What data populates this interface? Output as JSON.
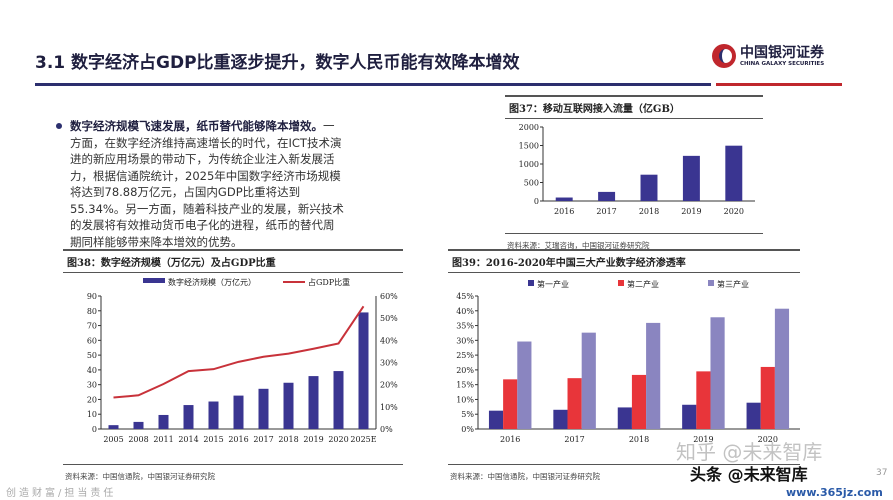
{
  "header": {
    "title": "3.1  数字经济占GDP比重逐步提升，数字人民币能有效降本增效",
    "logo_cn": "中国银河证券",
    "logo_en": "CHINA GALAXY SECURITIES"
  },
  "bullet": {
    "bold": "数字经济规模飞速发展，纸币替代能够降本增效。",
    "text": "一方面，在数字经济维持高速增长的时代，在ICT技术演进的新应用场景的带动下，为传统企业注入新发展活力，根据信通院统计，2025年中国数字经济市场规模将达到78.88万亿元，占国内GDP比重将达到55.34%。另一方面，随着科技产业的发展，新兴技术的发展将有效推动货币电子化的进程，纸币的替代周期同样能够带来降本增效的优势。"
  },
  "footer": {
    "slogan": "创造财富/担当责任",
    "page": "37",
    "watermark1": "知乎 @未来智库",
    "watermark2": "头条 @未来智库",
    "watermark3": "www.365jz.com"
  },
  "chart_data": [
    {
      "id": "fig37",
      "type": "bar",
      "title": "图37：移动互联网接入流量（亿GB）",
      "source": "资料来源：艾瑞咨询，中国银河证券研究院",
      "categories": [
        "2016",
        "2017",
        "2018",
        "2019",
        "2020"
      ],
      "values": [
        94,
        246,
        711,
        1220,
        1495
      ],
      "ylim": [
        0,
        2000
      ],
      "yticks": [
        0,
        500,
        1000,
        1500,
        2000
      ],
      "color": "#3a3591"
    },
    {
      "id": "fig38",
      "type": "bar+line",
      "title": "图38：数字经济规模（万亿元）及占GDP比重",
      "source": "资料来源：中国信通院，中国银河证券研究院",
      "categories": [
        "2005",
        "2008",
        "2011",
        "2014",
        "2015",
        "2016",
        "2017",
        "2018",
        "2019",
        "2020",
        "2025E"
      ],
      "series": [
        {
          "name": "数字经济规模（万亿元）",
          "type": "bar",
          "axis": "left",
          "color": "#3a3591",
          "values": [
            2.6,
            4.8,
            9.5,
            16.2,
            18.6,
            22.6,
            27.2,
            31.3,
            35.8,
            39.2,
            78.88
          ]
        },
        {
          "name": "占GDP比重",
          "type": "line",
          "axis": "right",
          "color": "#c8323a",
          "values": [
            14.2,
            15.2,
            20.3,
            26.1,
            27.0,
            30.3,
            32.6,
            34.0,
            36.2,
            38.6,
            55.34
          ]
        }
      ],
      "ylim": [
        0,
        90
      ],
      "yticks": [
        0,
        10,
        20,
        30,
        40,
        50,
        60,
        70,
        80,
        90
      ],
      "y2lim": [
        0,
        60
      ],
      "y2ticks": [
        "0%",
        "10%",
        "20%",
        "30%",
        "40%",
        "50%",
        "60%"
      ],
      "legend": "top"
    },
    {
      "id": "fig39",
      "type": "bar",
      "title": "图39：2016-2020年中国三大产业数字经济渗透率",
      "source": "资料来源：中国信通院，中国银河证券研究院",
      "categories": [
        "2016",
        "2017",
        "2018",
        "2019",
        "2020"
      ],
      "series": [
        {
          "name": "第一产业",
          "color": "#3a3591",
          "values": [
            6.2,
            6.5,
            7.3,
            8.2,
            8.9
          ]
        },
        {
          "name": "第二产业",
          "color": "#e8353a",
          "values": [
            16.8,
            17.2,
            18.3,
            19.5,
            21.0
          ]
        },
        {
          "name": "第三产业",
          "color": "#8a85c0",
          "values": [
            29.6,
            32.6,
            35.9,
            37.8,
            40.7
          ]
        }
      ],
      "ylim": [
        0,
        45
      ],
      "yticks": [
        "0%",
        "5%",
        "10%",
        "15%",
        "20%",
        "25%",
        "30%",
        "35%",
        "40%",
        "45%"
      ],
      "legend": "top"
    }
  ]
}
